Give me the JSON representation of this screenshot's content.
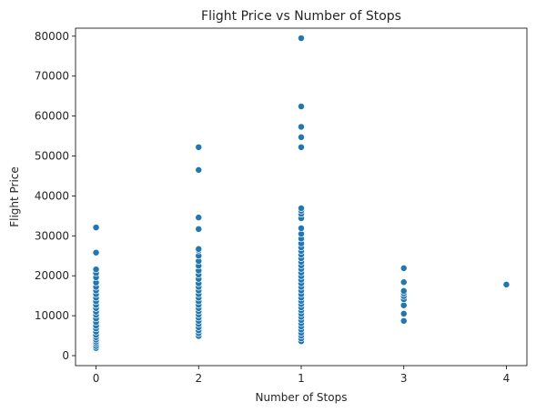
{
  "chart_data": {
    "type": "scatter",
    "title": "Flight Price vs Number of Stops",
    "xlabel": "Number of Stops",
    "ylabel": "Flight Price",
    "x_categories": [
      "0",
      "2",
      "1",
      "3",
      "4"
    ],
    "yticks": [
      0,
      10000,
      20000,
      30000,
      40000,
      50000,
      60000,
      70000,
      80000
    ],
    "ylim": [
      -2500,
      82000
    ],
    "grid": false,
    "legend": "none",
    "point_color": "#1f77b4",
    "series": [
      {
        "points": [
          {
            "x": "0",
            "y": 1900
          },
          {
            "x": "0",
            "y": 2400
          },
          {
            "x": "0",
            "y": 3000
          },
          {
            "x": "0",
            "y": 3500
          },
          {
            "x": "0",
            "y": 4000
          },
          {
            "x": "0",
            "y": 4600
          },
          {
            "x": "0",
            "y": 5200
          },
          {
            "x": "0",
            "y": 6000
          },
          {
            "x": "0",
            "y": 6800
          },
          {
            "x": "0",
            "y": 7500
          },
          {
            "x": "0",
            "y": 8400
          },
          {
            "x": "0",
            "y": 9300
          },
          {
            "x": "0",
            "y": 10200
          },
          {
            "x": "0",
            "y": 11000
          },
          {
            "x": "0",
            "y": 11900
          },
          {
            "x": "0",
            "y": 12700
          },
          {
            "x": "0",
            "y": 13600
          },
          {
            "x": "0",
            "y": 14500
          },
          {
            "x": "0",
            "y": 15400
          },
          {
            "x": "0",
            "y": 16300
          },
          {
            "x": "0",
            "y": 17200
          },
          {
            "x": "0",
            "y": 18300
          },
          {
            "x": "0",
            "y": 19600
          },
          {
            "x": "0",
            "y": 20700
          },
          {
            "x": "0",
            "y": 21600
          },
          {
            "x": "0",
            "y": 25800
          },
          {
            "x": "0",
            "y": 32100
          },
          {
            "x": "2",
            "y": 4900
          },
          {
            "x": "2",
            "y": 5600
          },
          {
            "x": "2",
            "y": 6300
          },
          {
            "x": "2",
            "y": 7100
          },
          {
            "x": "2",
            "y": 7900
          },
          {
            "x": "2",
            "y": 8700
          },
          {
            "x": "2",
            "y": 9500
          },
          {
            "x": "2",
            "y": 10300
          },
          {
            "x": "2",
            "y": 11100
          },
          {
            "x": "2",
            "y": 11900
          },
          {
            "x": "2",
            "y": 12700
          },
          {
            "x": "2",
            "y": 13600
          },
          {
            "x": "2",
            "y": 14500
          },
          {
            "x": "2",
            "y": 15400
          },
          {
            "x": "2",
            "y": 16300
          },
          {
            "x": "2",
            "y": 17200
          },
          {
            "x": "2",
            "y": 18100
          },
          {
            "x": "2",
            "y": 19200
          },
          {
            "x": "2",
            "y": 20300
          },
          {
            "x": "2",
            "y": 21300
          },
          {
            "x": "2",
            "y": 22500
          },
          {
            "x": "2",
            "y": 23700
          },
          {
            "x": "2",
            "y": 25000
          },
          {
            "x": "2",
            "y": 26300
          },
          {
            "x": "2",
            "y": 26700
          },
          {
            "x": "2",
            "y": 31700
          },
          {
            "x": "2",
            "y": 34600
          },
          {
            "x": "2",
            "y": 46500
          },
          {
            "x": "2",
            "y": 52200
          },
          {
            "x": "1",
            "y": 3600
          },
          {
            "x": "1",
            "y": 4300
          },
          {
            "x": "1",
            "y": 5000
          },
          {
            "x": "1",
            "y": 5700
          },
          {
            "x": "1",
            "y": 6500
          },
          {
            "x": "1",
            "y": 7300
          },
          {
            "x": "1",
            "y": 8100
          },
          {
            "x": "1",
            "y": 8900
          },
          {
            "x": "1",
            "y": 9700
          },
          {
            "x": "1",
            "y": 10500
          },
          {
            "x": "1",
            "y": 11300
          },
          {
            "x": "1",
            "y": 12100
          },
          {
            "x": "1",
            "y": 12900
          },
          {
            "x": "1",
            "y": 13700
          },
          {
            "x": "1",
            "y": 14500
          },
          {
            "x": "1",
            "y": 15400
          },
          {
            "x": "1",
            "y": 16300
          },
          {
            "x": "1",
            "y": 17200
          },
          {
            "x": "1",
            "y": 18100
          },
          {
            "x": "1",
            "y": 19000
          },
          {
            "x": "1",
            "y": 19900
          },
          {
            "x": "1",
            "y": 20800
          },
          {
            "x": "1",
            "y": 21700
          },
          {
            "x": "1",
            "y": 22600
          },
          {
            "x": "1",
            "y": 23500
          },
          {
            "x": "1",
            "y": 24400
          },
          {
            "x": "1",
            "y": 25300
          },
          {
            "x": "1",
            "y": 26200
          },
          {
            "x": "1",
            "y": 27100
          },
          {
            "x": "1",
            "y": 28100
          },
          {
            "x": "1",
            "y": 29300
          },
          {
            "x": "1",
            "y": 30500
          },
          {
            "x": "1",
            "y": 31900
          },
          {
            "x": "1",
            "y": 34400
          },
          {
            "x": "1",
            "y": 35500
          },
          {
            "x": "1",
            "y": 36300
          },
          {
            "x": "1",
            "y": 36900
          },
          {
            "x": "1",
            "y": 52200
          },
          {
            "x": "1",
            "y": 54700
          },
          {
            "x": "1",
            "y": 57300
          },
          {
            "x": "1",
            "y": 62400
          },
          {
            "x": "1",
            "y": 79500
          },
          {
            "x": "3",
            "y": 8700
          },
          {
            "x": "3",
            "y": 10500
          },
          {
            "x": "3",
            "y": 12600
          },
          {
            "x": "3",
            "y": 14100
          },
          {
            "x": "3",
            "y": 14900
          },
          {
            "x": "3",
            "y": 15600
          },
          {
            "x": "3",
            "y": 16200
          },
          {
            "x": "3",
            "y": 18400
          },
          {
            "x": "3",
            "y": 21900
          },
          {
            "x": "4",
            "y": 17800
          }
        ]
      }
    ]
  }
}
